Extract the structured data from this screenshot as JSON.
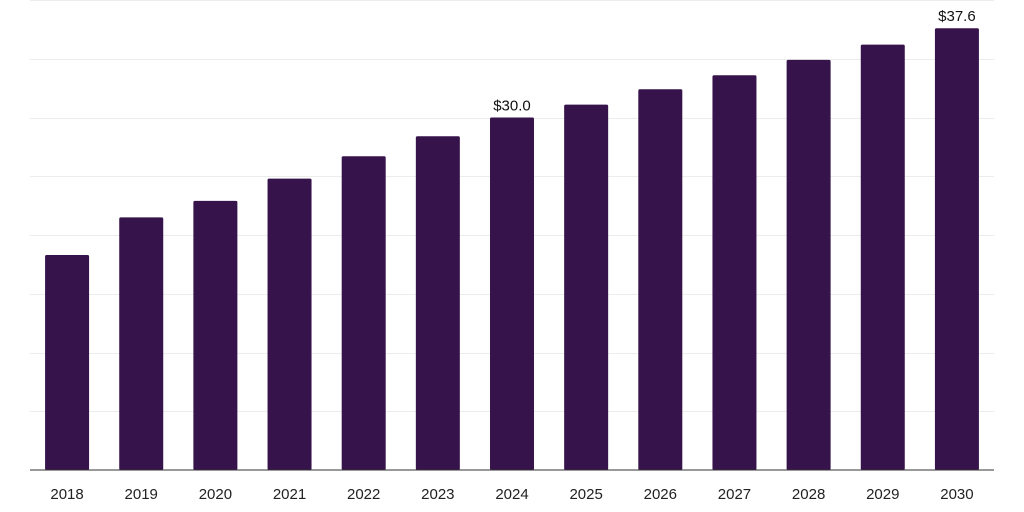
{
  "chart_data": {
    "type": "bar",
    "title": "",
    "xlabel": "",
    "ylabel": "",
    "categories": [
      "2018",
      "2019",
      "2020",
      "2021",
      "2022",
      "2023",
      "2024",
      "2025",
      "2026",
      "2027",
      "2028",
      "2029",
      "2030"
    ],
    "values": [
      18.3,
      21.5,
      22.9,
      24.8,
      26.7,
      28.4,
      30.0,
      31.1,
      32.4,
      33.6,
      34.9,
      36.2,
      37.6
    ],
    "data_labels": [
      {
        "category": "2024",
        "text": "$30.0"
      },
      {
        "category": "2030",
        "text": "$37.6"
      }
    ],
    "ylim": [
      0,
      40
    ],
    "gridlines": [
      0,
      5,
      10,
      15,
      20,
      25,
      30,
      35,
      40
    ],
    "grid": true,
    "legend": "none",
    "bar_color": "#36134a"
  }
}
